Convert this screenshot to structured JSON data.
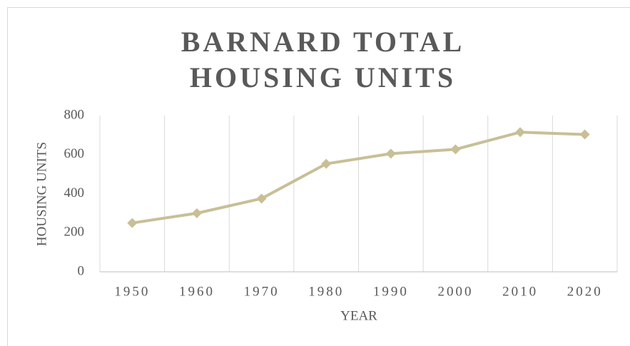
{
  "chart_data": {
    "type": "line",
    "title": "BARNARD TOTAL HOUSING UNITS",
    "x_label": "YEAR",
    "y_label": "HOUSING UNITS",
    "categories": [
      "1950",
      "1960",
      "1970",
      "1980",
      "1990",
      "2000",
      "2010",
      "2020"
    ],
    "series": [
      {
        "name": "Housing Units",
        "color": "#c8bf97",
        "values": [
          250,
          300,
          375,
          553,
          605,
          627,
          715,
          703
        ]
      }
    ],
    "ylim": [
      0,
      800
    ],
    "yticks": [
      0,
      200,
      400,
      600,
      800
    ],
    "grid": "x",
    "marker": "diamond"
  }
}
